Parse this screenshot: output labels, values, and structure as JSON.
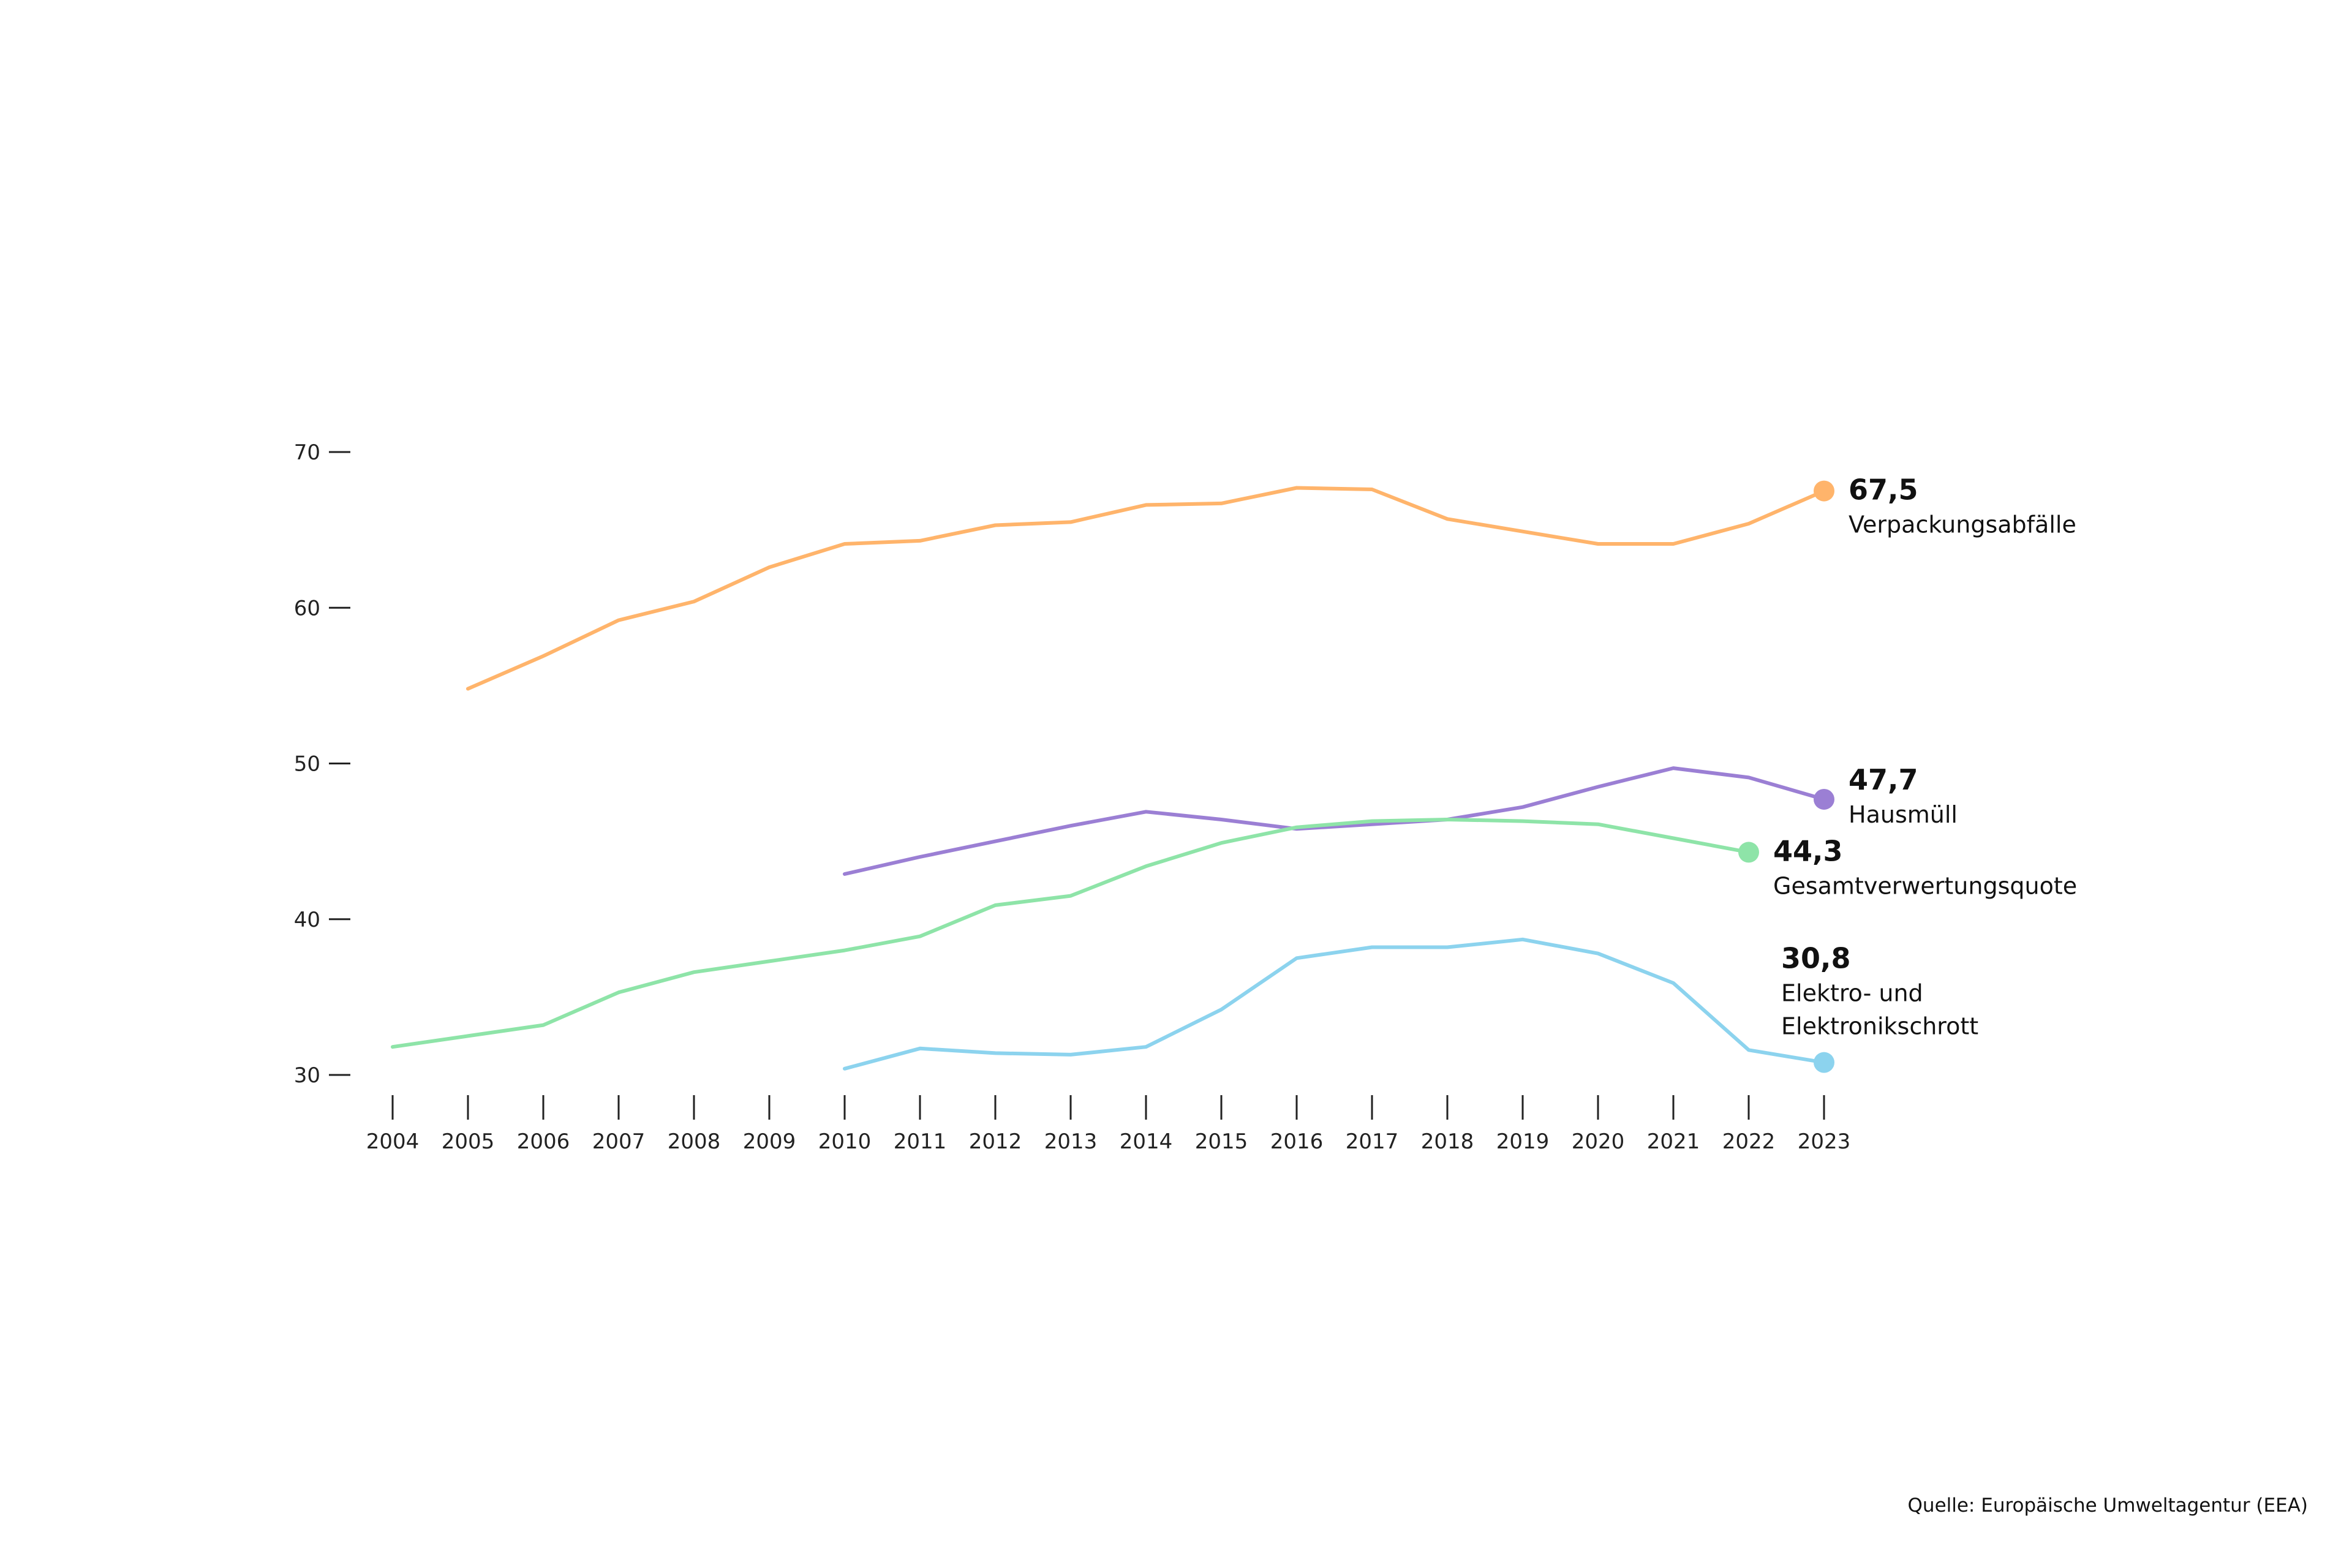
{
  "source": "Quelle: Europäische Umweltagentur (EEA)",
  "chart_data": {
    "type": "line",
    "title": "",
    "xlabel": "",
    "ylabel": "",
    "x": [
      2004,
      2005,
      2006,
      2007,
      2008,
      2009,
      2010,
      2011,
      2012,
      2013,
      2014,
      2015,
      2016,
      2017,
      2018,
      2019,
      2020,
      2021,
      2022,
      2023
    ],
    "x_tick_labels": [
      "2004",
      "2005",
      "2006",
      "2007",
      "2008",
      "2009",
      "2010",
      "2011",
      "2012",
      "2013",
      "2014",
      "2015",
      "2016",
      "2017",
      "2018",
      "2019",
      "2020",
      "2021",
      "2022",
      "2023"
    ],
    "y_ticks": [
      30,
      40,
      50,
      60,
      70
    ],
    "y_tick_labels": [
      "30",
      "40",
      "50",
      "60",
      "70"
    ],
    "ylim": [
      29,
      71
    ],
    "xlim": [
      2004,
      2023
    ],
    "grid": false,
    "legend": "end-labels",
    "series": [
      {
        "name": "Verpackungsabfälle",
        "color": "#FFB46B",
        "end_label": "67,5",
        "values": [
          null,
          54.8,
          56.9,
          59.2,
          60.4,
          62.6,
          64.1,
          64.3,
          65.3,
          65.5,
          66.6,
          66.7,
          67.7,
          67.6,
          65.7,
          64.9,
          64.1,
          64.1,
          65.4,
          67.5
        ]
      },
      {
        "name": "Hausmüll",
        "color": "#9B7FD4",
        "end_label": "47,7",
        "values": [
          null,
          null,
          null,
          null,
          null,
          null,
          42.9,
          44.0,
          45.0,
          46.0,
          46.9,
          46.4,
          45.8,
          46.1,
          46.4,
          47.2,
          48.5,
          49.7,
          49.1,
          47.7
        ]
      },
      {
        "name": "Gesamtverwertungsquote",
        "color": "#8EE4A8",
        "end_label": "44,3",
        "values": [
          31.8,
          32.5,
          33.2,
          35.3,
          36.6,
          37.3,
          38.0,
          38.9,
          40.9,
          41.5,
          43.4,
          44.9,
          45.9,
          46.3,
          46.4,
          46.3,
          46.1,
          45.2,
          44.3,
          null
        ]
      },
      {
        "name": "Elektro- und Elektronikschrott",
        "name_lines": [
          "Elektro- und",
          "Elektronikschrott"
        ],
        "color": "#8CD3EE",
        "end_label": "30,8",
        "values": [
          null,
          null,
          null,
          null,
          null,
          null,
          30.4,
          31.7,
          31.4,
          31.3,
          31.8,
          34.2,
          37.5,
          38.2,
          38.2,
          38.7,
          37.8,
          35.9,
          31.6,
          30.8
        ]
      }
    ]
  }
}
